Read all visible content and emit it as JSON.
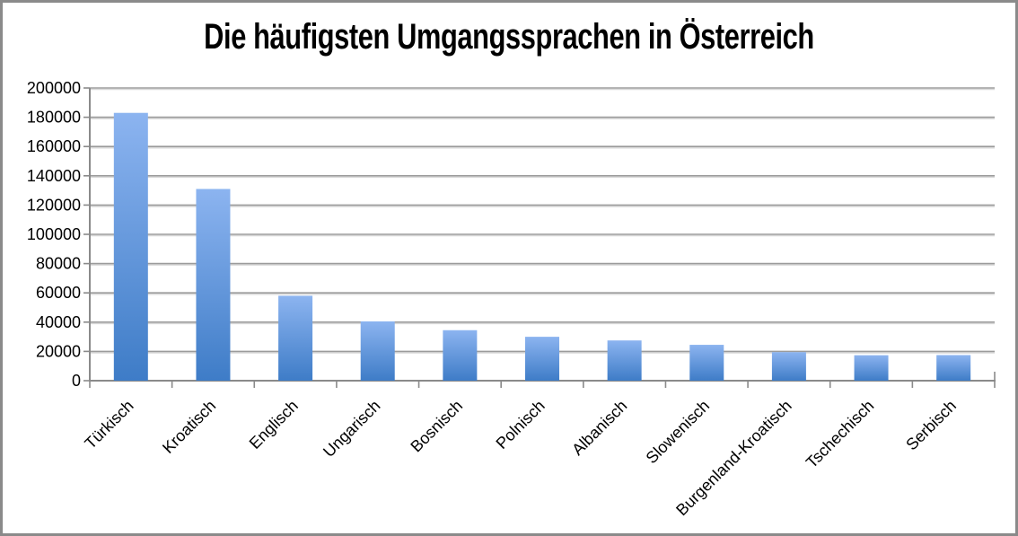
{
  "chart_data": {
    "type": "bar",
    "title": "Die häufigsten Umgangssprachen in Österreich",
    "categories": [
      "Türkisch",
      "Kroatisch",
      "Englisch",
      "Ungarisch",
      "Bosnisch",
      "Polnisch",
      "Albanisch",
      "Slowenisch",
      "Burgenland-Kroatisch",
      "Tschechisch",
      "Serbisch"
    ],
    "values": [
      183000,
      131000,
      58000,
      40500,
      34500,
      30000,
      27500,
      24500,
      19500,
      17400,
      17500
    ],
    "xlabel": "",
    "ylabel": "",
    "ylim": [
      0,
      200000
    ],
    "ytick_step": 20000,
    "ytick_labels": [
      "0",
      "20000",
      "40000",
      "60000",
      "80000",
      "100000",
      "120000",
      "140000",
      "160000",
      "180000",
      "200000"
    ],
    "grid": "horizontal",
    "legend": "none",
    "x_label_rotation_deg": -45,
    "colors": {
      "bar_top": "#8CB4F0",
      "bar_bottom": "#3E7CC7",
      "gridline": "#9b9b9b",
      "gridline_shadow": "#d9d9d9",
      "axis": "#8a8a8a",
      "text": "#000000",
      "frame_border": "#8a8a8a",
      "background": "#ffffff"
    }
  }
}
